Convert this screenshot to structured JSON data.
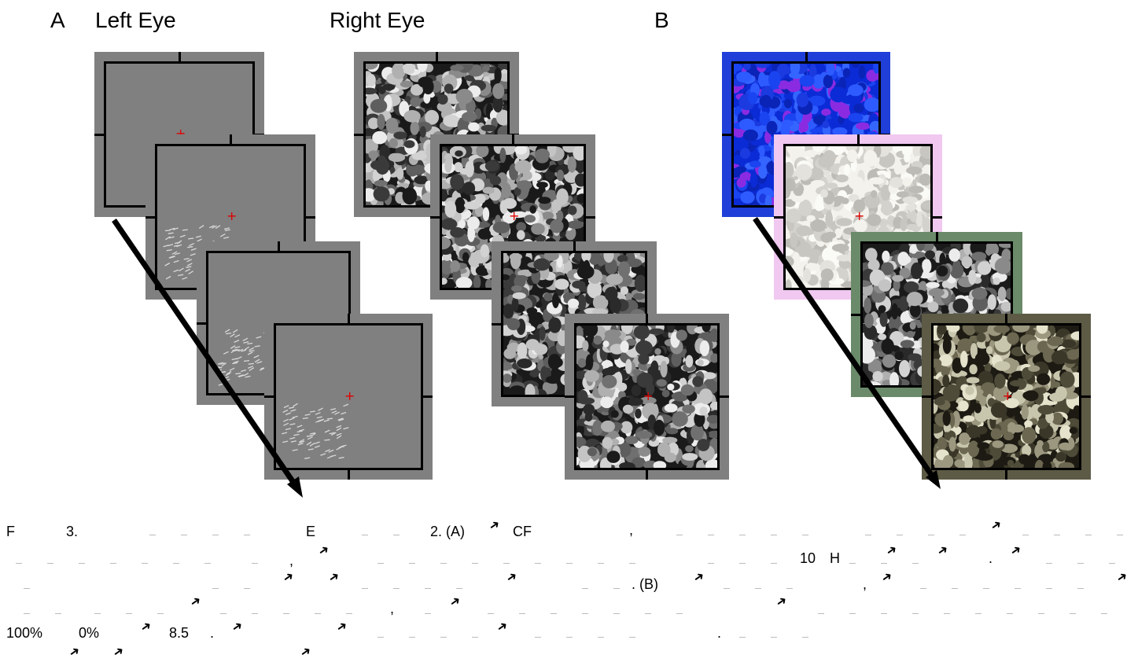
{
  "figure": {
    "panel_a_label": "A",
    "panel_b_label": "B",
    "left_eye_heading": "Left Eye",
    "right_eye_heading": "Right Eye",
    "fixation_mark": "+"
  },
  "caption": {
    "figure_number": "F",
    "figure_index": "3.",
    "experiment_ref": "E",
    "experiment_part": "2. (A)",
    "cf_abbrev": "CF",
    "rate": "10",
    "rate_unit": "H",
    "panel_b_ref": ". (B)",
    "contrast_high": "100%",
    "contrast_low": "0%",
    "duration": "8.5",
    "period_1": ".",
    "period_2": ".",
    "period_3": ".",
    "comma": ","
  }
}
